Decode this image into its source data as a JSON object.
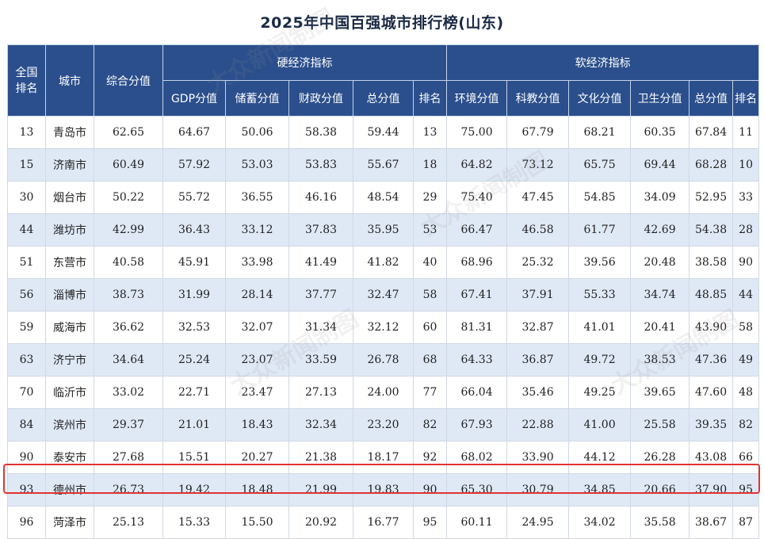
{
  "title": "2025年中国百强城市排行榜(山东)",
  "header": {
    "national_rank": "全国\n排名",
    "city": "城市",
    "overall": "综合分值",
    "hard_group": "硬经济指标",
    "soft_group": "软经济指标",
    "hard_cols": [
      "GDP分值",
      "储蓄分值",
      "财政分值",
      "总分值",
      "排名"
    ],
    "soft_cols": [
      "环境分值",
      "科教分值",
      "文化分值",
      "卫生分值",
      "总分值",
      "排名"
    ]
  },
  "rows": [
    [
      "13",
      "青岛市",
      "62.65",
      "64.67",
      "50.06",
      "58.38",
      "59.44",
      "13",
      "75.00",
      "67.79",
      "68.21",
      "60.35",
      "67.84",
      "11"
    ],
    [
      "15",
      "济南市",
      "60.49",
      "57.92",
      "53.03",
      "53.83",
      "55.67",
      "18",
      "64.82",
      "73.12",
      "65.75",
      "69.44",
      "68.28",
      "10"
    ],
    [
      "30",
      "烟台市",
      "50.22",
      "55.72",
      "36.55",
      "46.16",
      "48.54",
      "29",
      "75.40",
      "47.45",
      "54.85",
      "34.09",
      "52.95",
      "33"
    ],
    [
      "44",
      "潍坊市",
      "42.99",
      "36.43",
      "33.12",
      "37.83",
      "35.95",
      "53",
      "66.47",
      "46.58",
      "61.77",
      "42.69",
      "54.38",
      "28"
    ],
    [
      "51",
      "东营市",
      "40.58",
      "45.91",
      "33.98",
      "41.49",
      "41.82",
      "40",
      "68.96",
      "25.32",
      "39.56",
      "20.48",
      "38.58",
      "90"
    ],
    [
      "56",
      "淄博市",
      "38.73",
      "31.99",
      "28.14",
      "37.77",
      "32.47",
      "58",
      "67.41",
      "37.91",
      "55.33",
      "34.74",
      "48.85",
      "44"
    ],
    [
      "59",
      "威海市",
      "36.62",
      "32.53",
      "32.07",
      "31.34",
      "32.12",
      "60",
      "81.31",
      "32.87",
      "41.01",
      "20.41",
      "43.90",
      "58"
    ],
    [
      "63",
      "济宁市",
      "34.64",
      "25.24",
      "23.07",
      "33.59",
      "26.78",
      "68",
      "64.33",
      "36.87",
      "49.72",
      "38.53",
      "47.36",
      "49"
    ],
    [
      "70",
      "临沂市",
      "33.02",
      "22.71",
      "23.47",
      "27.13",
      "24.00",
      "77",
      "66.04",
      "35.46",
      "49.25",
      "39.65",
      "47.60",
      "48"
    ],
    [
      "84",
      "滨州市",
      "29.37",
      "21.01",
      "18.43",
      "32.34",
      "23.20",
      "82",
      "67.93",
      "22.88",
      "41.00",
      "25.58",
      "39.35",
      "82"
    ],
    [
      "90",
      "泰安市",
      "27.68",
      "15.51",
      "20.27",
      "21.38",
      "18.17",
      "92",
      "68.02",
      "33.90",
      "44.12",
      "26.28",
      "43.08",
      "66"
    ],
    [
      "93",
      "德州市",
      "26.73",
      "19.42",
      "18.48",
      "21.99",
      "19.83",
      "90",
      "65.30",
      "30.79",
      "34.85",
      "20.66",
      "37.90",
      "95"
    ],
    [
      "96",
      "菏泽市",
      "25.13",
      "15.33",
      "15.50",
      "20.92",
      "16.77",
      "95",
      "60.11",
      "24.95",
      "34.02",
      "35.58",
      "38.67",
      "87"
    ]
  ],
  "highlighted_city": "德州市",
  "highlight_color": "#e23232",
  "header_color": "#2b4f8c",
  "stripe_color": "#dfe9f6",
  "watermark": "大众新闻制图"
}
